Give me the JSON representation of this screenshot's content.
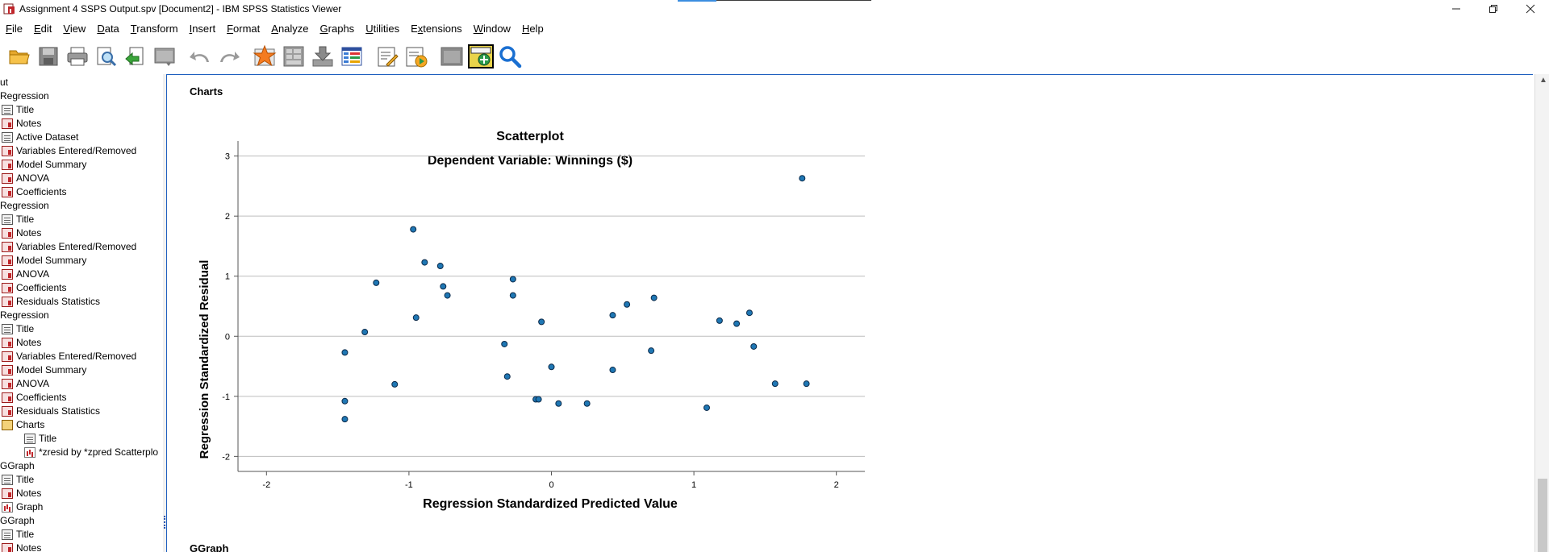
{
  "window": {
    "title": "Assignment 4 SSPS Output.spv [Document2] - IBM SPSS Statistics Viewer",
    "controls": [
      "minimize",
      "restore",
      "close"
    ]
  },
  "menu": [
    {
      "label": "File",
      "u": "F",
      "rest": "ile"
    },
    {
      "label": "Edit",
      "u": "E",
      "rest": "dit"
    },
    {
      "label": "View",
      "u": "V",
      "rest": "iew"
    },
    {
      "label": "Data",
      "u": "D",
      "rest": "ata"
    },
    {
      "label": "Transform",
      "u": "T",
      "rest": "ransform"
    },
    {
      "label": "Insert",
      "u": "I",
      "rest": "nsert"
    },
    {
      "label": "Format",
      "u": "F",
      "rest": "ormat"
    },
    {
      "label": "Analyze",
      "u": "A",
      "rest": "nalyze"
    },
    {
      "label": "Graphs",
      "u": "G",
      "rest": "raphs"
    },
    {
      "label": "Utilities",
      "u": "U",
      "rest": "tilities"
    },
    {
      "label": "Extensions",
      "u": "x",
      "pre": "E",
      "rest": "tensions"
    },
    {
      "label": "Window",
      "u": "W",
      "rest": "indow"
    },
    {
      "label": "Help",
      "u": "H",
      "rest": "elp"
    }
  ],
  "toolbar": [
    "open-folder-icon",
    "save-icon",
    "print-icon",
    "print-preview-icon",
    "export-icon",
    "recall-dialog-icon",
    "undo-icon",
    "redo-icon",
    "goto-data-icon",
    "goto-case-icon",
    "goto-variable-icon",
    "variables-icon",
    "insert-heading-icon",
    "insert-output-icon",
    "designate-window-icon",
    "show-hide-icon",
    "find-icon"
  ],
  "outline": [
    {
      "label": "ut",
      "type": "none",
      "indent": 0
    },
    {
      "label": "Regression",
      "type": "none",
      "indent": 0
    },
    {
      "label": "Title",
      "type": "doc",
      "indent": 1
    },
    {
      "label": "Notes",
      "type": "red",
      "indent": 1
    },
    {
      "label": "Active Dataset",
      "type": "doc",
      "indent": 1
    },
    {
      "label": "Variables Entered/Removed",
      "type": "red",
      "indent": 1
    },
    {
      "label": "Model Summary",
      "type": "red",
      "indent": 1
    },
    {
      "label": "ANOVA",
      "type": "red",
      "indent": 1
    },
    {
      "label": "Coefficients",
      "type": "red",
      "indent": 1
    },
    {
      "label": "Regression",
      "type": "none",
      "indent": 0
    },
    {
      "label": "Title",
      "type": "doc",
      "indent": 1
    },
    {
      "label": "Notes",
      "type": "red",
      "indent": 1
    },
    {
      "label": "Variables Entered/Removed",
      "type": "red",
      "indent": 1
    },
    {
      "label": "Model Summary",
      "type": "red",
      "indent": 1
    },
    {
      "label": "ANOVA",
      "type": "red",
      "indent": 1
    },
    {
      "label": "Coefficients",
      "type": "red",
      "indent": 1
    },
    {
      "label": "Residuals Statistics",
      "type": "red",
      "indent": 1
    },
    {
      "label": "Regression",
      "type": "none",
      "indent": 0
    },
    {
      "label": "Title",
      "type": "doc",
      "indent": 1
    },
    {
      "label": "Notes",
      "type": "red",
      "indent": 1
    },
    {
      "label": "Variables Entered/Removed",
      "type": "red",
      "indent": 1
    },
    {
      "label": "Model Summary",
      "type": "red",
      "indent": 1
    },
    {
      "label": "ANOVA",
      "type": "red",
      "indent": 1
    },
    {
      "label": "Coefficients",
      "type": "red",
      "indent": 1
    },
    {
      "label": "Residuals Statistics",
      "type": "red",
      "indent": 1
    },
    {
      "label": "Charts",
      "type": "chartbook",
      "indent": 1
    },
    {
      "label": "Title",
      "type": "doc",
      "indent": 2
    },
    {
      "label": "*zresid by *zpred Scatterplo",
      "type": "chart",
      "indent": 2
    },
    {
      "label": "GGraph",
      "type": "none",
      "indent": 0
    },
    {
      "label": "Title",
      "type": "doc",
      "indent": 1
    },
    {
      "label": "Notes",
      "type": "red",
      "indent": 1
    },
    {
      "label": "Graph",
      "type": "chart",
      "indent": 1
    },
    {
      "label": "GGraph",
      "type": "none",
      "indent": 0
    },
    {
      "label": "Title",
      "type": "doc",
      "indent": 1
    },
    {
      "label": "Notes",
      "type": "red",
      "indent": 1
    }
  ],
  "content": {
    "section_heading": "Charts",
    "next_heading": "GGraph"
  },
  "chart_data": {
    "type": "scatter",
    "title": "Scatterplot",
    "subtitle": "Dependent Variable: Winnings ($)",
    "xlabel": "Regression Standardized Predicted Value",
    "ylabel": "Regression Standardized Residual",
    "xlim": [
      -2.2,
      2.2
    ],
    "ylim": [
      -2.25,
      3.25
    ],
    "xticks": [
      -2,
      -1,
      0,
      1,
      2
    ],
    "yticks": [
      -2,
      -1,
      0,
      1,
      2,
      3
    ],
    "grid": "horizontal",
    "point_color": "#1f77b4",
    "points": [
      [
        -1.45,
        -0.27
      ],
      [
        -1.45,
        -1.08
      ],
      [
        -1.45,
        -1.38
      ],
      [
        -1.31,
        0.07
      ],
      [
        -1.23,
        0.89
      ],
      [
        -1.1,
        -0.8
      ],
      [
        -0.97,
        1.78
      ],
      [
        -0.95,
        0.31
      ],
      [
        -0.89,
        1.23
      ],
      [
        -0.78,
        1.17
      ],
      [
        -0.76,
        0.83
      ],
      [
        -0.73,
        0.68
      ],
      [
        -0.33,
        -0.13
      ],
      [
        -0.31,
        -0.67
      ],
      [
        -0.27,
        0.95
      ],
      [
        -0.27,
        0.68
      ],
      [
        -0.11,
        -1.05
      ],
      [
        -0.09,
        -1.05
      ],
      [
        -0.07,
        0.24
      ],
      [
        0.0,
        -0.51
      ],
      [
        0.05,
        -1.12
      ],
      [
        0.25,
        -1.12
      ],
      [
        0.43,
        0.35
      ],
      [
        0.43,
        -0.56
      ],
      [
        0.53,
        0.53
      ],
      [
        0.7,
        -0.24
      ],
      [
        0.72,
        0.64
      ],
      [
        1.09,
        -1.19
      ],
      [
        1.18,
        0.26
      ],
      [
        1.3,
        0.21
      ],
      [
        1.39,
        0.39
      ],
      [
        1.42,
        -0.17
      ],
      [
        1.57,
        -0.79
      ],
      [
        1.76,
        2.63
      ],
      [
        1.79,
        -0.79
      ]
    ]
  }
}
